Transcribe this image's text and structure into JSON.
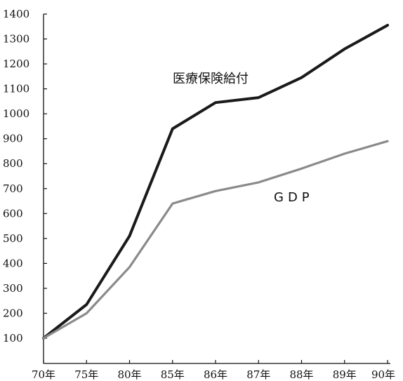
{
  "chart_data": {
    "type": "line",
    "title": "",
    "xlabel": "",
    "ylabel": "",
    "categories": [
      "70年",
      "75年",
      "80年",
      "85年",
      "86年",
      "87年",
      "88年",
      "89年",
      "90年"
    ],
    "ylim": [
      100,
      1400
    ],
    "yticks": [
      100,
      200,
      300,
      400,
      500,
      600,
      700,
      800,
      900,
      1000,
      1100,
      1200,
      1300,
      1400
    ],
    "grid": false,
    "legend": "none",
    "series": [
      {
        "name": "医療保険給付",
        "values": [
          100,
          235,
          510,
          940,
          1045,
          1065,
          1145,
          1260,
          1355
        ],
        "color": "#1a1a1a"
      },
      {
        "name": "GDP",
        "values": [
          100,
          200,
          385,
          640,
          690,
          725,
          780,
          840,
          890
        ],
        "color": "#8a8a8a"
      }
    ]
  }
}
